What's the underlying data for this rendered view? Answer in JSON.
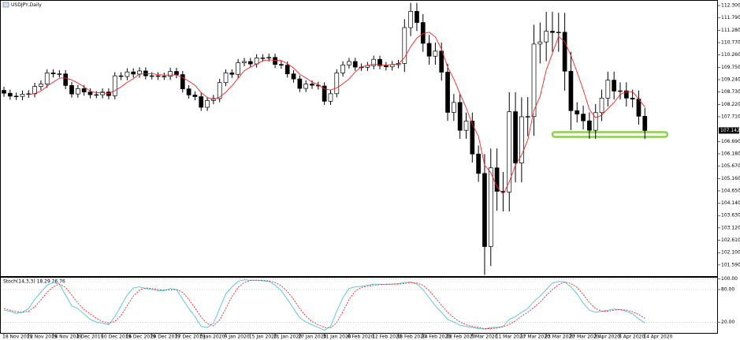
{
  "chart_data": [
    {
      "type": "candlestick",
      "title": "USDJPY,Daily",
      "categories": [
        "18 Nov 2019",
        null,
        null,
        null,
        "22 Nov 2019",
        null,
        null,
        null,
        "28 Nov 2019",
        null,
        null,
        null,
        "4 Dec 2019",
        null,
        null,
        null,
        "10 Dec 2019",
        null,
        null,
        null,
        "16 Dec 2019",
        null,
        null,
        null,
        "20 Dec 2019",
        null,
        null,
        null,
        "27 Dec 2019",
        null,
        null,
        null,
        "3 Jan 2020",
        null,
        null,
        null,
        "9 Jan 2020",
        null,
        null,
        null,
        "15 Jan 2020",
        null,
        null,
        null,
        "21 Jan 2020",
        null,
        null,
        null,
        "27 Jan 2020",
        null,
        null,
        null,
        "31 Jan 2020",
        null,
        null,
        null,
        "6 Feb 2020",
        null,
        null,
        null,
        "12 Feb 2020",
        null,
        null,
        null,
        "18 Feb 2020",
        null,
        null,
        null,
        "24 Feb 2020",
        null,
        null,
        null,
        "28 Feb 2020",
        null,
        null,
        null,
        "5 Mar 2020",
        null,
        null,
        null,
        "11 Mar 2020",
        null,
        null,
        null,
        "17 Mar 2020",
        null,
        null,
        null,
        "23 Mar 2020",
        null,
        null,
        null,
        "27 Mar 2020",
        null,
        null,
        null,
        "2 Apr 2020",
        null,
        null,
        null,
        "8 Apr 2020",
        null,
        null,
        null,
        "14 Apr 2020"
      ],
      "open": [
        108.8,
        108.68,
        108.56,
        108.55,
        108.64,
        108.66,
        108.96,
        109.06,
        109.52,
        109.48,
        109.48,
        109.0,
        108.65,
        108.87,
        108.73,
        108.62,
        108.62,
        108.73,
        108.58,
        109.4,
        109.37,
        109.56,
        109.47,
        109.6,
        109.4,
        109.4,
        109.38,
        109.38,
        109.58,
        109.45,
        108.86,
        108.61,
        108.54,
        108.1,
        108.38,
        108.46,
        109.12,
        109.52,
        109.46,
        109.94,
        109.99,
        109.89,
        110.14,
        110.14,
        110.16,
        109.87,
        109.84,
        109.48,
        109.27,
        108.88,
        109.06,
        109.01,
        108.98,
        108.35,
        108.66,
        109.52,
        109.85,
        109.99,
        109.76,
        109.75,
        109.82,
        110.08,
        109.82,
        109.77,
        109.86,
        109.91,
        111.39,
        112.06,
        111.6,
        110.74,
        110.21,
        110.42,
        109.55,
        107.89,
        108.3,
        107.15,
        107.53,
        106.17,
        105.37,
        102.35,
        105.6,
        104.63,
        104.6,
        107.92,
        105.8,
        107.71,
        107.72,
        110.71,
        110.8,
        111.24,
        111.19,
        111.2,
        109.59,
        107.96,
        107.82,
        107.54,
        107.15,
        107.88,
        108.48,
        109.22,
        108.77,
        108.78,
        108.48,
        108.44,
        107.73
      ],
      "high": [
        108.95,
        108.83,
        108.71,
        108.79,
        108.81,
        109.11,
        109.21,
        109.67,
        109.67,
        109.63,
        109.63,
        109.15,
        109.02,
        109.02,
        108.88,
        108.77,
        108.88,
        108.88,
        109.55,
        109.55,
        109.71,
        109.71,
        109.75,
        109.75,
        109.55,
        109.55,
        109.53,
        109.73,
        109.73,
        109.6,
        109.01,
        108.76,
        108.69,
        108.53,
        108.61,
        109.27,
        109.67,
        109.67,
        110.09,
        110.14,
        110.14,
        110.29,
        110.29,
        110.31,
        110.31,
        110.02,
        109.99,
        109.63,
        109.42,
        109.21,
        109.21,
        109.16,
        109.13,
        108.81,
        109.67,
        110.0,
        110.14,
        110.14,
        109.91,
        109.97,
        110.23,
        110.23,
        109.97,
        110.01,
        110.06,
        111.74,
        112.41,
        112.41,
        111.95,
        111.09,
        110.77,
        110.77,
        109.9,
        108.65,
        108.65,
        107.88,
        107.88,
        106.52,
        106.17,
        106.4,
        106.4,
        105.43,
        108.72,
        108.72,
        108.51,
        108.52,
        111.51,
        111.6,
        112.04,
        112.04,
        112.0,
        112.0,
        110.39,
        108.31,
        108.17,
        107.89,
        108.23,
        108.83,
        109.57,
        109.57,
        109.13,
        109.13,
        108.83,
        108.79,
        108.08
      ],
      "low": [
        108.53,
        108.41,
        108.4,
        108.4,
        108.49,
        108.51,
        108.81,
        108.91,
        109.33,
        109.33,
        108.85,
        108.5,
        108.5,
        108.58,
        108.47,
        108.47,
        108.47,
        108.43,
        108.43,
        109.22,
        109.22,
        109.32,
        109.32,
        109.25,
        109.25,
        109.23,
        109.23,
        109.23,
        109.3,
        108.71,
        108.46,
        108.39,
        107.95,
        107.95,
        108.23,
        108.31,
        108.97,
        109.31,
        109.31,
        109.79,
        109.74,
        109.74,
        109.99,
        109.99,
        109.72,
        109.69,
        109.33,
        109.12,
        108.73,
        108.73,
        108.86,
        108.83,
        108.2,
        108.2,
        108.51,
        109.37,
        109.7,
        109.61,
        109.6,
        109.6,
        109.67,
        109.67,
        109.62,
        109.62,
        109.71,
        109.56,
        111.04,
        111.25,
        110.39,
        109.86,
        109.86,
        109.2,
        107.54,
        107.54,
        106.8,
        106.8,
        105.82,
        105.02,
        101.18,
        101.55,
        103.83,
        103.8,
        103.8,
        105.0,
        105.0,
        106.91,
        106.92,
        109.91,
        110.0,
        110.39,
        110.39,
        108.79,
        107.16,
        107.47,
        107.19,
        106.8,
        106.8,
        107.53,
        108.13,
        108.42,
        108.42,
        108.13,
        108.09,
        107.38,
        106.79
      ],
      "close": [
        108.68,
        108.56,
        108.55,
        108.64,
        108.66,
        108.96,
        109.06,
        109.52,
        109.48,
        109.48,
        109.0,
        108.65,
        108.87,
        108.73,
        108.62,
        108.62,
        108.73,
        108.58,
        109.4,
        109.37,
        109.56,
        109.47,
        109.6,
        109.4,
        109.4,
        109.38,
        109.38,
        109.58,
        109.45,
        108.86,
        108.61,
        108.54,
        108.1,
        108.38,
        108.46,
        109.12,
        109.52,
        109.46,
        109.94,
        109.99,
        109.89,
        110.14,
        110.14,
        110.16,
        109.87,
        109.84,
        109.48,
        109.27,
        108.88,
        109.06,
        109.01,
        108.98,
        108.35,
        108.66,
        109.52,
        109.85,
        109.99,
        109.76,
        109.75,
        109.82,
        110.08,
        109.82,
        109.77,
        109.86,
        109.91,
        111.39,
        112.06,
        111.6,
        110.74,
        110.21,
        110.42,
        109.55,
        107.89,
        108.3,
        107.15,
        107.53,
        106.17,
        105.37,
        102.35,
        105.6,
        104.63,
        104.6,
        107.92,
        105.8,
        107.71,
        107.72,
        110.71,
        110.8,
        111.24,
        111.19,
        111.2,
        109.59,
        107.96,
        107.82,
        107.54,
        107.15,
        107.88,
        108.48,
        109.22,
        108.77,
        108.78,
        108.48,
        108.44,
        107.73,
        107.142
      ],
      "up_color": "#ffffff",
      "down_color": "#000000",
      "outline_color": "#000000",
      "ma": {
        "color": "#ff2020",
        "values": [
          null,
          null,
          null,
          null,
          108.62,
          108.67,
          108.77,
          108.97,
          109.14,
          109.3,
          109.31,
          109.23,
          109.1,
          108.95,
          108.77,
          108.7,
          108.71,
          108.66,
          108.79,
          108.94,
          109.13,
          109.28,
          109.48,
          109.48,
          109.49,
          109.45,
          109.43,
          109.43,
          109.44,
          109.33,
          109.18,
          109.01,
          108.71,
          108.5,
          108.42,
          108.52,
          108.72,
          108.99,
          109.3,
          109.61,
          109.76,
          109.88,
          110.02,
          110.06,
          110.04,
          110.03,
          109.9,
          109.72,
          109.47,
          109.31,
          109.14,
          109.04,
          108.86,
          108.81,
          108.9,
          109.07,
          109.27,
          109.56,
          109.77,
          109.83,
          109.88,
          109.85,
          109.85,
          109.87,
          109.89,
          110.15,
          110.6,
          110.96,
          111.14,
          111.2,
          111.01,
          110.5,
          109.76,
          109.27,
          108.66,
          108.08,
          107.41,
          106.9,
          105.71,
          105.4,
          104.82,
          104.51,
          105.02,
          105.71,
          106.13,
          106.75,
          107.97,
          108.55,
          109.64,
          110.33,
          111.03,
          110.8,
          110.24,
          109.55,
          108.82,
          108.01,
          107.67,
          107.77,
          108.05,
          108.3,
          108.63,
          108.75,
          108.74,
          108.44,
          108.11
        ]
      },
      "current_price": 107.142,
      "ylim": [
        101.13,
        112.53
      ],
      "yticks": [
        {
          "value": 112.3,
          "label": "112.300"
        },
        {
          "value": 111.79,
          "label": "111.790"
        },
        {
          "value": 111.28,
          "label": "111.280"
        },
        {
          "value": 110.77,
          "label": "110.770"
        },
        {
          "value": 110.26,
          "label": "110.260"
        },
        {
          "value": 109.75,
          "label": "109.750"
        },
        {
          "value": 109.24,
          "label": "109.240"
        },
        {
          "value": 108.73,
          "label": "108.730"
        },
        {
          "value": 108.22,
          "label": "108.220"
        },
        {
          "value": 107.71,
          "label": "107.710"
        },
        {
          "value": 106.69,
          "label": "106.690"
        },
        {
          "value": 106.18,
          "label": "106.180"
        },
        {
          "value": 105.67,
          "label": "105.670"
        },
        {
          "value": 105.16,
          "label": "105.160"
        },
        {
          "value": 104.65,
          "label": "104.650"
        },
        {
          "value": 104.14,
          "label": "104.140"
        },
        {
          "value": 103.63,
          "label": "103.630"
        },
        {
          "value": 103.12,
          "label": "103.120"
        },
        {
          "value": 102.61,
          "label": "102.610"
        },
        {
          "value": 102.1,
          "label": "102.100"
        },
        {
          "value": 101.59,
          "label": "101.590"
        }
      ],
      "grid": false
    },
    {
      "type": "line",
      "title": "Stoch(14,3,3) 18.29 26.76",
      "series": [
        {
          "color": "#4fc3d9",
          "dashed": false,
          "values": [
            42,
            40,
            36,
            38,
            45,
            62,
            75,
            88,
            93,
            90,
            70,
            50,
            45,
            35,
            25,
            20,
            18,
            15,
            30,
            50,
            70,
            83,
            85,
            82,
            80,
            78,
            78,
            82,
            80,
            62,
            45,
            30,
            12,
            10,
            18,
            45,
            72,
            85,
            95,
            98,
            97,
            97,
            96,
            95,
            88,
            78,
            62,
            45,
            28,
            20,
            15,
            10,
            5,
            12,
            40,
            65,
            82,
            85,
            86,
            88,
            90,
            90,
            89,
            90,
            91,
            93,
            94,
            90,
            80,
            65,
            50,
            38,
            25,
            20,
            14,
            12,
            10,
            8,
            7,
            10,
            10,
            12,
            25,
            30,
            38,
            45,
            58,
            68,
            80,
            92,
            95,
            94,
            85,
            72,
            55,
            42,
            38,
            40,
            42,
            44,
            43,
            40,
            35,
            26,
            18.29
          ]
        },
        {
          "color": "#ff2020",
          "dashed": true,
          "values": [
            45,
            42,
            39,
            38,
            40,
            48,
            61,
            75,
            85,
            90,
            84,
            70,
            55,
            43,
            35,
            27,
            21,
            18,
            21,
            32,
            50,
            68,
            79,
            83,
            82,
            80,
            79,
            79,
            80,
            75,
            62,
            46,
            29,
            17,
            13,
            24,
            45,
            67,
            84,
            93,
            97,
            97,
            97,
            96,
            93,
            87,
            76,
            62,
            45,
            31,
            21,
            15,
            10,
            9,
            19,
            39,
            62,
            77,
            84,
            86,
            88,
            89,
            90,
            90,
            90,
            91,
            93,
            92,
            88,
            78,
            65,
            51,
            38,
            28,
            20,
            15,
            12,
            10,
            8,
            8,
            9,
            11,
            16,
            22,
            31,
            38,
            47,
            57,
            69,
            80,
            89,
            94,
            91,
            84,
            71,
            56,
            45,
            40,
            40,
            42,
            43,
            42,
            39,
            34,
            26.76
          ]
        }
      ],
      "ylim": [
        0,
        100
      ],
      "yticks": [
        {
          "value": 100,
          "label": "100.00"
        },
        {
          "value": 80,
          "label": "80.00"
        },
        {
          "value": 20,
          "label": "20.00"
        }
      ],
      "level_lines": true
    }
  ]
}
